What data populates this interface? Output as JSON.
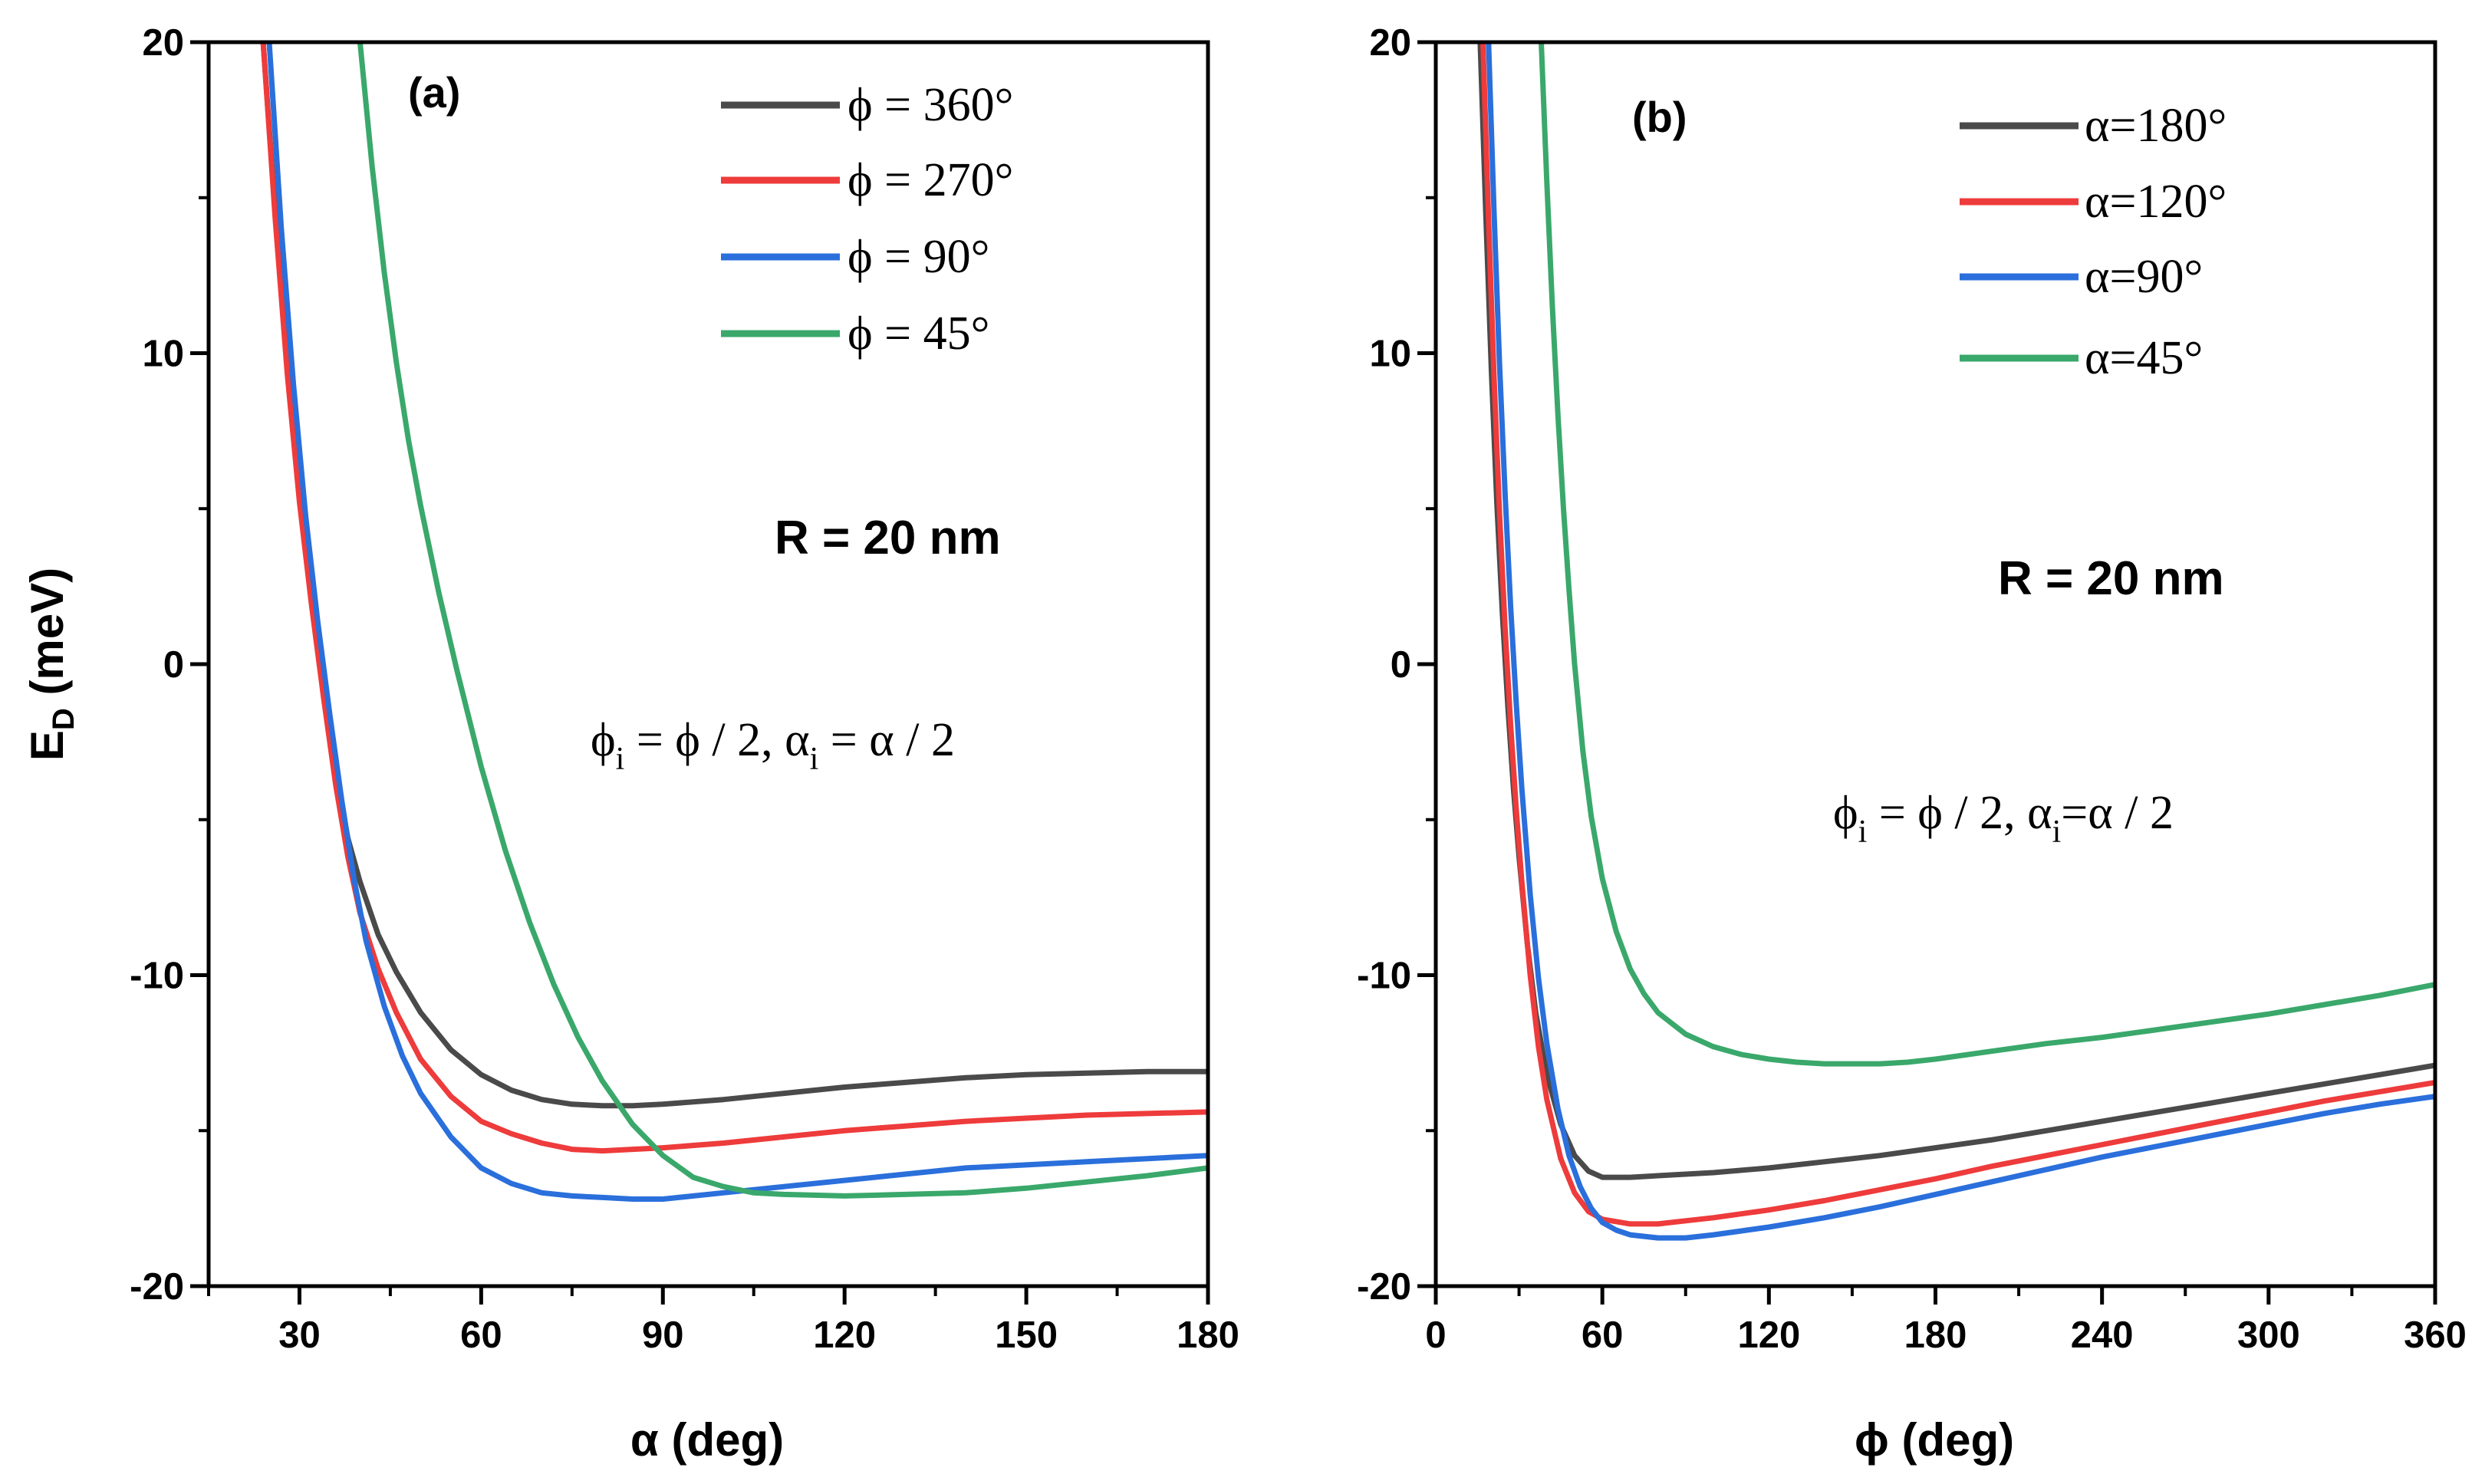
{
  "figure": {
    "y_label_main": "E",
    "y_label_sub": "D",
    "y_label_unit": " (meV)"
  },
  "colors": {
    "black": "#4a4a4a",
    "red": "#ee3b3b",
    "blue": "#2a6fdb",
    "green": "#3aa86b"
  },
  "chart_data": [
    {
      "type": "line",
      "panel": "(a)",
      "xlabel": "α (deg)",
      "ylabel": "E_D (meV)",
      "xlim": [
        15,
        180
      ],
      "ylim": [
        -20,
        20
      ],
      "xticks": [
        30,
        60,
        90,
        120,
        150,
        180
      ],
      "xtick_labels": [
        "30",
        "60",
        "90",
        "120",
        "150",
        "180"
      ],
      "yticks": [
        -20,
        -10,
        0,
        10,
        20
      ],
      "ytick_labels": [
        "-20",
        "-10",
        "0",
        "10",
        "20"
      ],
      "annotation_r": "R = 20 nm",
      "annotation_eq": {
        "phi": "ϕ",
        "i": "i",
        "mid": " = ϕ / 2, ",
        "alpha": "α",
        "i2": "i",
        "end": " = α / 2"
      },
      "series": [
        {
          "name": "ϕ = 360°",
          "color": "#4a4a4a",
          "x": [
            24,
            26,
            28,
            30,
            32,
            34,
            36,
            38,
            40,
            43,
            46,
            50,
            55,
            60,
            65,
            70,
            75,
            80,
            85,
            90,
            100,
            110,
            120,
            130,
            140,
            150,
            160,
            170,
            180
          ],
          "y": [
            20,
            14.5,
            9.5,
            5.5,
            2.3,
            -0.6,
            -3.5,
            -5.6,
            -7.0,
            -8.7,
            -9.9,
            -11.2,
            -12.4,
            -13.2,
            -13.7,
            -14.0,
            -14.15,
            -14.2,
            -14.2,
            -14.15,
            -14.0,
            -13.8,
            -13.6,
            -13.45,
            -13.3,
            -13.2,
            -13.15,
            -13.1,
            -13.1
          ]
        },
        {
          "name": "ϕ = 270°",
          "color": "#ee3b3b",
          "x": [
            24,
            26,
            28,
            30,
            32,
            34,
            36,
            38,
            40,
            43,
            46,
            50,
            55,
            60,
            65,
            70,
            75,
            80,
            85,
            90,
            100,
            110,
            120,
            130,
            140,
            150,
            160,
            170,
            180
          ],
          "y": [
            20,
            14.3,
            9.3,
            5.2,
            1.9,
            -1.1,
            -3.9,
            -6.2,
            -8.0,
            -9.8,
            -11.2,
            -12.7,
            -13.9,
            -14.7,
            -15.1,
            -15.4,
            -15.6,
            -15.65,
            -15.6,
            -15.55,
            -15.4,
            -15.2,
            -15.0,
            -14.85,
            -14.7,
            -14.6,
            -14.5,
            -14.45,
            -14.4
          ]
        },
        {
          "name": "ϕ = 90°",
          "color": "#2a6fdb",
          "x": [
            25,
            27,
            29,
            31,
            33,
            35,
            37,
            39,
            41,
            44,
            47,
            50,
            55,
            60,
            65,
            70,
            75,
            80,
            85,
            90,
            100,
            110,
            120,
            130,
            140,
            150,
            160,
            170,
            180
          ],
          "y": [
            20,
            14.0,
            9.0,
            4.8,
            1.4,
            -1.6,
            -4.4,
            -6.9,
            -8.9,
            -11.0,
            -12.6,
            -13.8,
            -15.2,
            -16.2,
            -16.7,
            -17.0,
            -17.1,
            -17.15,
            -17.2,
            -17.2,
            -17.0,
            -16.8,
            -16.6,
            -16.4,
            -16.2,
            -16.1,
            -16.0,
            -15.9,
            -15.8
          ]
        },
        {
          "name": "ϕ = 45°",
          "color": "#3aa86b",
          "x": [
            40,
            42,
            44,
            46,
            48,
            50,
            53,
            56,
            60,
            64,
            68,
            72,
            76,
            80,
            85,
            90,
            95,
            100,
            105,
            110,
            120,
            130,
            140,
            150,
            160,
            170,
            180
          ],
          "y": [
            20,
            16.0,
            12.6,
            9.7,
            7.2,
            5.1,
            2.3,
            -0.2,
            -3.3,
            -6.0,
            -8.3,
            -10.3,
            -12.0,
            -13.4,
            -14.8,
            -15.8,
            -16.5,
            -16.8,
            -17.0,
            -17.05,
            -17.1,
            -17.05,
            -17.0,
            -16.85,
            -16.65,
            -16.45,
            -16.2
          ]
        }
      ]
    },
    {
      "type": "line",
      "panel": "(b)",
      "xlabel": "ϕ (deg)",
      "ylabel": "",
      "xlim": [
        0,
        360
      ],
      "ylim": [
        -20,
        20
      ],
      "xticks": [
        0,
        60,
        120,
        180,
        240,
        300,
        360
      ],
      "xtick_labels": [
        "0",
        "60",
        "120",
        "180",
        "240",
        "300",
        "360"
      ],
      "yticks": [
        -20,
        -10,
        0,
        10,
        20
      ],
      "ytick_labels": [
        "-20",
        "-10",
        "0",
        "10",
        "20"
      ],
      "annotation_r": "R = 20 nm",
      "annotation_eq": {
        "phi": "ϕ",
        "i": "i",
        "mid": " = ϕ / 2, ",
        "alpha": "α",
        "i2": "i",
        "end": "=α / 2"
      },
      "series": [
        {
          "name": "α=180°",
          "color": "#4a4a4a",
          "x": [
            16,
            18,
            20,
            22,
            24,
            26,
            28,
            30,
            33,
            36,
            40,
            45,
            50,
            55,
            60,
            70,
            80,
            90,
            100,
            120,
            140,
            160,
            180,
            200,
            220,
            240,
            260,
            280,
            300,
            320,
            340,
            360
          ],
          "y": [
            20,
            14.5,
            9.5,
            5.2,
            1.6,
            -1.4,
            -4.0,
            -6.2,
            -9.0,
            -11.2,
            -13.2,
            -14.8,
            -15.8,
            -16.3,
            -16.5,
            -16.5,
            -16.45,
            -16.4,
            -16.35,
            -16.2,
            -16.0,
            -15.8,
            -15.55,
            -15.3,
            -15.0,
            -14.7,
            -14.4,
            -14.1,
            -13.8,
            -13.5,
            -13.2,
            -12.9
          ]
        },
        {
          "name": "α=120°",
          "color": "#ee3b3b",
          "x": [
            17,
            19,
            21,
            23,
            25,
            27,
            29,
            31,
            34,
            37,
            40,
            45,
            50,
            55,
            60,
            70,
            80,
            90,
            100,
            120,
            140,
            160,
            180,
            200,
            220,
            240,
            260,
            280,
            300,
            320,
            340,
            360
          ],
          "y": [
            20,
            14.3,
            9.2,
            4.8,
            1.1,
            -2.0,
            -4.7,
            -7.0,
            -10.0,
            -12.3,
            -14.0,
            -15.9,
            -17.0,
            -17.6,
            -17.85,
            -18.0,
            -18.0,
            -17.9,
            -17.8,
            -17.55,
            -17.25,
            -16.9,
            -16.55,
            -16.15,
            -15.8,
            -15.45,
            -15.1,
            -14.75,
            -14.4,
            -14.05,
            -13.75,
            -13.45
          ]
        },
        {
          "name": "α=90°",
          "color": "#2a6fdb",
          "x": [
            19,
            21,
            23,
            25,
            27,
            29,
            31,
            34,
            37,
            40,
            44,
            48,
            52,
            56,
            60,
            65,
            70,
            80,
            90,
            100,
            120,
            140,
            160,
            180,
            200,
            220,
            240,
            260,
            280,
            300,
            320,
            340,
            360
          ],
          "y": [
            20,
            14.5,
            9.6,
            5.4,
            1.8,
            -1.3,
            -4.0,
            -7.4,
            -10.1,
            -12.2,
            -14.3,
            -15.8,
            -16.8,
            -17.5,
            -17.95,
            -18.2,
            -18.35,
            -18.45,
            -18.45,
            -18.35,
            -18.1,
            -17.8,
            -17.45,
            -17.05,
            -16.65,
            -16.25,
            -15.85,
            -15.5,
            -15.15,
            -14.8,
            -14.45,
            -14.15,
            -13.9
          ]
        },
        {
          "name": "α=45°",
          "color": "#3aa86b",
          "x": [
            38,
            40,
            42,
            44,
            46,
            48,
            50,
            53,
            56,
            60,
            65,
            70,
            75,
            80,
            90,
            100,
            110,
            120,
            130,
            140,
            150,
            160,
            170,
            180,
            200,
            220,
            240,
            260,
            280,
            300,
            320,
            340,
            360
          ],
          "y": [
            20,
            15.5,
            11.5,
            8.0,
            5.0,
            2.4,
            0.0,
            -2.8,
            -4.9,
            -6.9,
            -8.6,
            -9.8,
            -10.6,
            -11.2,
            -11.9,
            -12.3,
            -12.55,
            -12.7,
            -12.8,
            -12.85,
            -12.85,
            -12.85,
            -12.8,
            -12.7,
            -12.45,
            -12.2,
            -12.0,
            -11.75,
            -11.5,
            -11.25,
            -10.95,
            -10.65,
            -10.3
          ]
        }
      ]
    }
  ]
}
